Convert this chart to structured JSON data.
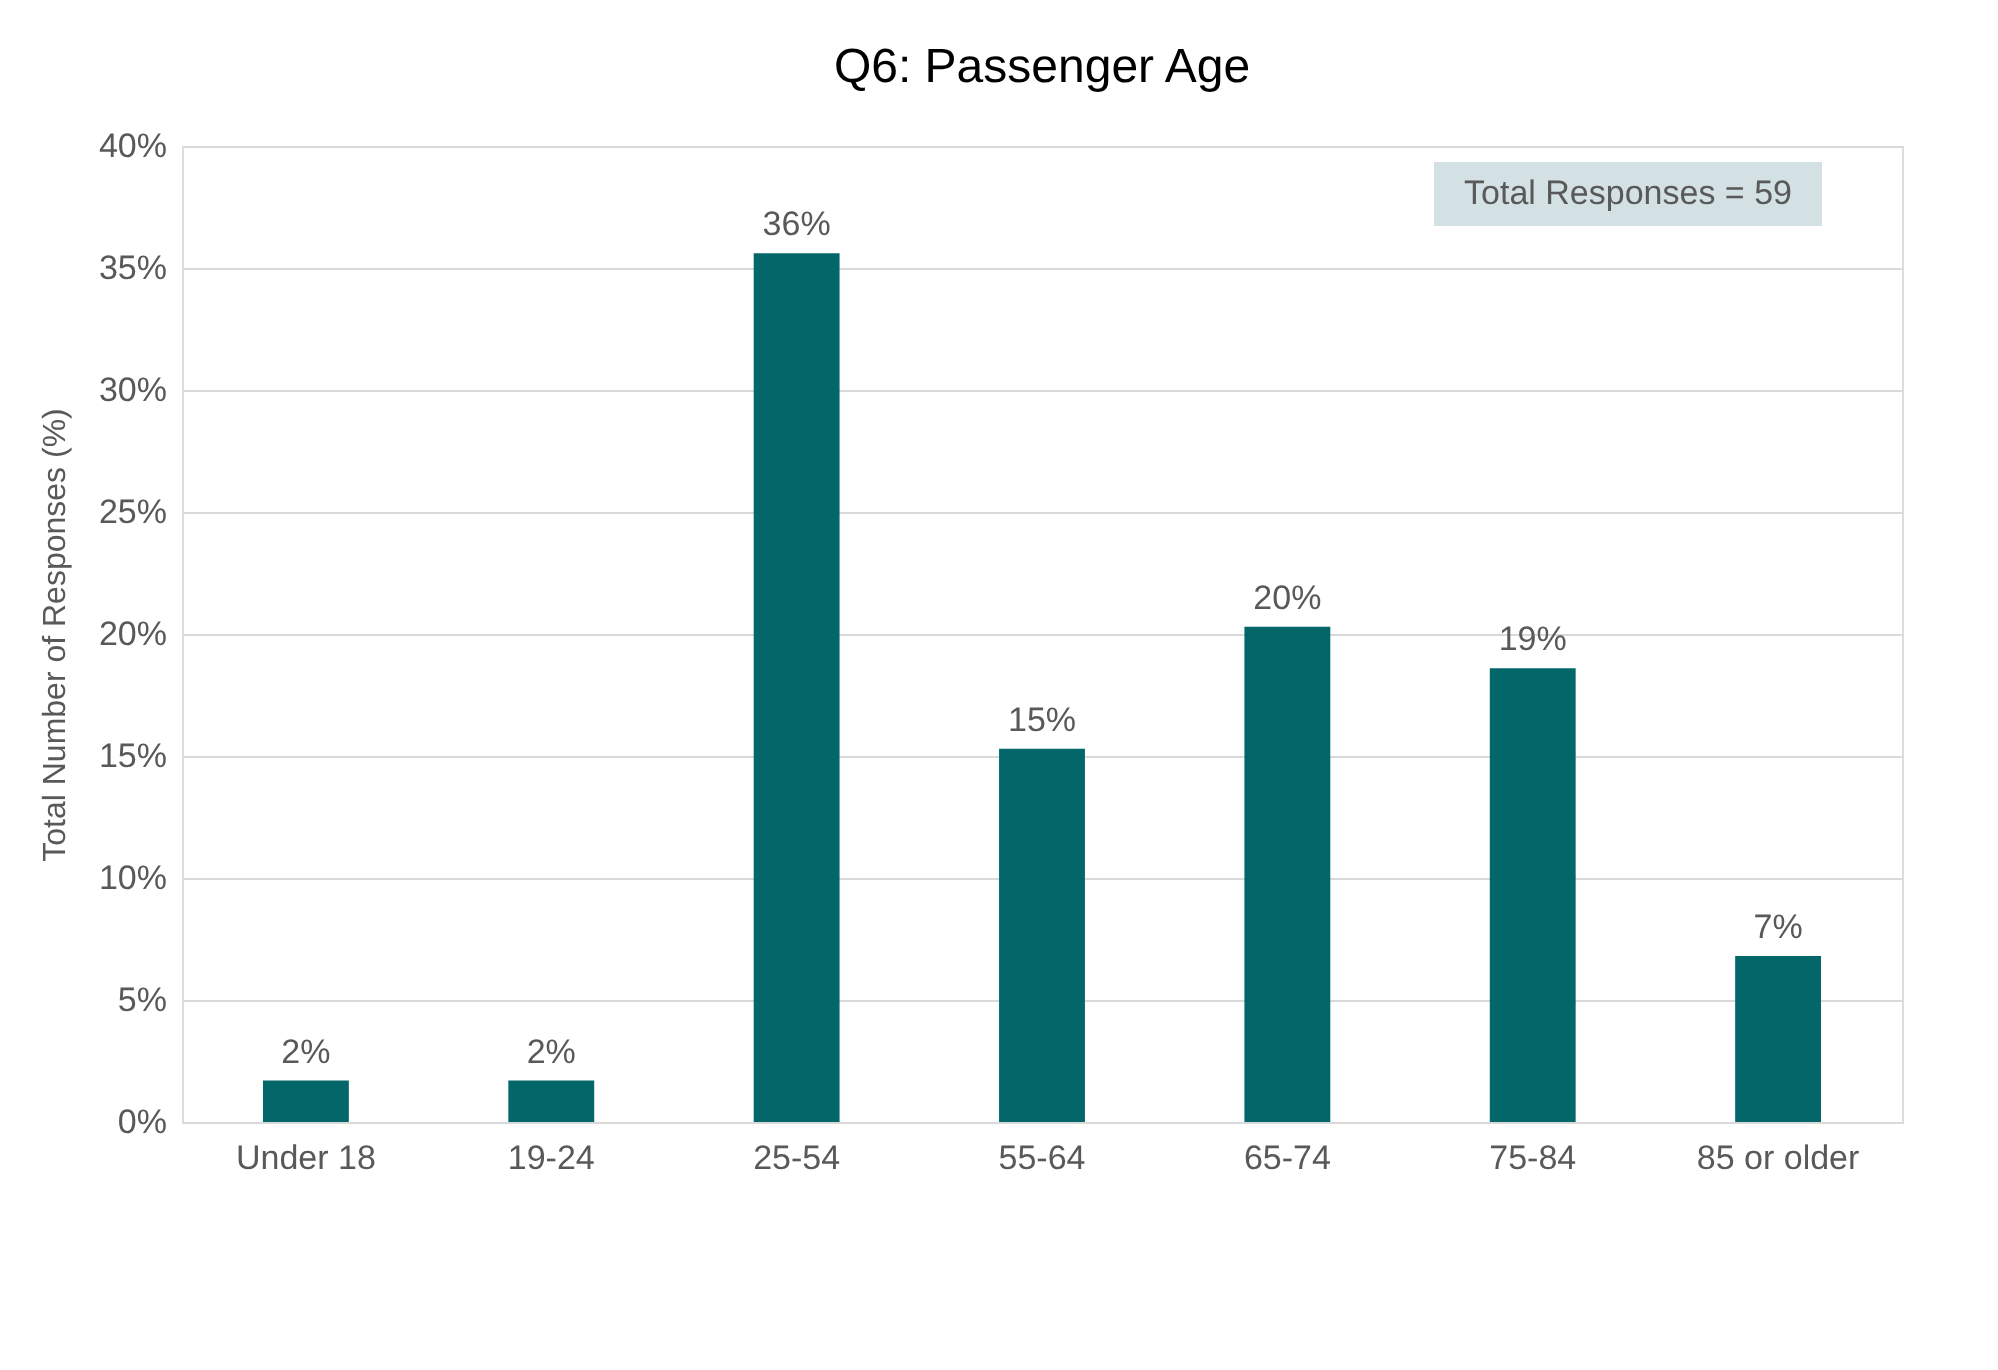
{
  "chart_data": {
    "type": "bar",
    "title": "Q6: Passenger Age",
    "ylabel": "Total Number of Responses (%)",
    "categories": [
      "Under 18",
      "19-24",
      "25-54",
      "55-64",
      "65-74",
      "75-84",
      "85 or older"
    ],
    "values": [
      1.7,
      1.7,
      35.6,
      15.3,
      20.3,
      18.6,
      6.8
    ],
    "value_labels": [
      "2%",
      "2%",
      "36%",
      "15%",
      "20%",
      "19%",
      "7%"
    ],
    "color": "#03676a",
    "ylim": [
      0,
      40
    ],
    "yticks": [
      {
        "value": 0,
        "label": "0%"
      },
      {
        "value": 5,
        "label": "5%"
      },
      {
        "value": 10,
        "label": "10%"
      },
      {
        "value": 15,
        "label": "15%"
      },
      {
        "value": 20,
        "label": "20%"
      },
      {
        "value": 25,
        "label": "25%"
      },
      {
        "value": 30,
        "label": "30%"
      },
      {
        "value": 35,
        "label": "35%"
      },
      {
        "value": 40,
        "label": "40%"
      }
    ],
    "grid": "y",
    "annotations": [
      "Total Responses = 59"
    ]
  }
}
